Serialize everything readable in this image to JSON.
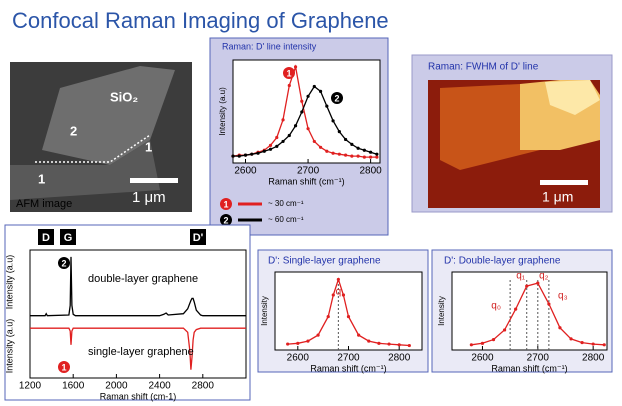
{
  "title": "Confocal Raman Imaging of Graphene",
  "afm": {
    "labels": [
      "SiO₂",
      "2",
      "1",
      "1"
    ],
    "scale_bar": "1 μm",
    "caption": "AFM image"
  },
  "fwhm_map": {
    "title": "Raman: FWHM of D' line",
    "scale_bar": "1 μm"
  },
  "chart_data": [
    {
      "type": "line",
      "title": "Raman: D' line intensity",
      "xlabel": "Raman shift (cm⁻¹)",
      "ylabel": "Intensity (a.u)",
      "xlim": [
        2580,
        2815
      ],
      "ylim": [
        0,
        1.05
      ],
      "xticks": [
        2600,
        2700,
        2800
      ],
      "x": [
        2580,
        2590,
        2600,
        2610,
        2620,
        2630,
        2640,
        2650,
        2660,
        2670,
        2680,
        2690,
        2700,
        2710,
        2720,
        2730,
        2740,
        2750,
        2760,
        2770,
        2780,
        2790,
        2800,
        2810
      ],
      "series": [
        {
          "name": "~ 30 cm⁻¹",
          "marker": "1",
          "color": "#e02020",
          "markers": true,
          "values": [
            0.07,
            0.08,
            0.08,
            0.09,
            0.11,
            0.13,
            0.18,
            0.26,
            0.44,
            0.79,
            0.98,
            0.63,
            0.35,
            0.22,
            0.16,
            0.12,
            0.1,
            0.09,
            0.08,
            0.07,
            0.07,
            0.06,
            0.06,
            0.06
          ]
        },
        {
          "name": "~ 60 cm⁻¹",
          "marker": "2",
          "color": "#000000",
          "markers": true,
          "values": [
            0.07,
            0.07,
            0.08,
            0.09,
            0.1,
            0.12,
            0.14,
            0.17,
            0.22,
            0.28,
            0.38,
            0.52,
            0.68,
            0.78,
            0.73,
            0.58,
            0.43,
            0.32,
            0.24,
            0.19,
            0.15,
            0.13,
            0.11,
            0.09
          ]
        }
      ]
    },
    {
      "type": "line",
      "xlabel": "Raman shift (cm-1)",
      "ylabels": [
        "Intensity (a.u)",
        "Intensity (a.u)"
      ],
      "peak_labels": [
        "D",
        "G",
        "D'"
      ],
      "xlim": [
        1200,
        3200
      ],
      "ylim": [
        -0.6,
        1.25
      ],
      "xticks": [
        1200,
        1600,
        2000,
        2400,
        2800
      ],
      "x": [
        1200,
        1340,
        1350,
        1360,
        1560,
        1572,
        1580,
        1588,
        1600,
        1620,
        2400,
        2440,
        2460,
        2480,
        2620,
        2660,
        2680,
        2690,
        2700,
        2710,
        2720,
        2740,
        2780,
        2800,
        3000,
        3200
      ],
      "series": [
        {
          "name": "double-layer graphene",
          "marker": "2",
          "color": "#000000",
          "values": [
            0.3,
            0.3,
            0.33,
            0.3,
            0.31,
            0.45,
            1.15,
            0.45,
            0.32,
            0.3,
            0.3,
            0.32,
            0.34,
            0.31,
            0.33,
            0.4,
            0.48,
            0.52,
            0.55,
            0.55,
            0.5,
            0.38,
            0.31,
            0.3,
            0.3,
            0.3
          ]
        },
        {
          "name": "single-layer graphene",
          "marker": "1",
          "color": "#e02020",
          "values": [
            0.12,
            0.12,
            0.12,
            0.12,
            0.12,
            0.08,
            -0.12,
            0.08,
            0.12,
            0.12,
            0.12,
            0.12,
            0.12,
            0.12,
            0.12,
            0.06,
            -0.2,
            -0.48,
            -0.3,
            -0.05,
            0.06,
            0.1,
            0.12,
            0.12,
            0.12,
            0.12
          ]
        }
      ]
    },
    {
      "type": "line",
      "title": "D': Single-layer graphene",
      "xlabel": "Raman shift (cm⁻¹)",
      "ylabel": "Intensity",
      "xlim": [
        2555,
        2845
      ],
      "ylim": [
        0,
        1.05
      ],
      "xticks": [
        2600,
        2700,
        2800
      ],
      "x": [
        2580,
        2600,
        2620,
        2640,
        2660,
        2670,
        2680,
        2690,
        2700,
        2720,
        2740,
        2760,
        2780,
        2800,
        2820
      ],
      "series": [
        {
          "color": "#e02020",
          "markers": true,
          "values": [
            0.08,
            0.09,
            0.12,
            0.2,
            0.45,
            0.74,
            0.95,
            0.74,
            0.45,
            0.2,
            0.12,
            0.09,
            0.08,
            0.07,
            0.06
          ]
        }
      ],
      "peaks": [
        {
          "label": "q",
          "x": 2680
        }
      ]
    },
    {
      "type": "line",
      "title": "D': Double-layer graphene",
      "xlabel": "Raman shift (cm⁻¹)",
      "ylabel": "Intensity",
      "xlim": [
        2545,
        2825
      ],
      "ylim": [
        0,
        1.05
      ],
      "xticks": [
        2600,
        2700,
        2800
      ],
      "x": [
        2580,
        2600,
        2620,
        2640,
        2660,
        2680,
        2700,
        2720,
        2740,
        2760,
        2780,
        2800,
        2820
      ],
      "series": [
        {
          "color": "#e02020",
          "markers": true,
          "values": [
            0.07,
            0.09,
            0.14,
            0.27,
            0.55,
            0.86,
            0.9,
            0.62,
            0.3,
            0.15,
            0.1,
            0.08,
            0.07
          ]
        }
      ],
      "peaks": [
        {
          "label": "q₀",
          "x": 2650
        },
        {
          "label": "q₁",
          "x": 2680
        },
        {
          "label": "q₂",
          "x": 2700
        },
        {
          "label": "q₃",
          "x": 2720
        }
      ]
    }
  ]
}
